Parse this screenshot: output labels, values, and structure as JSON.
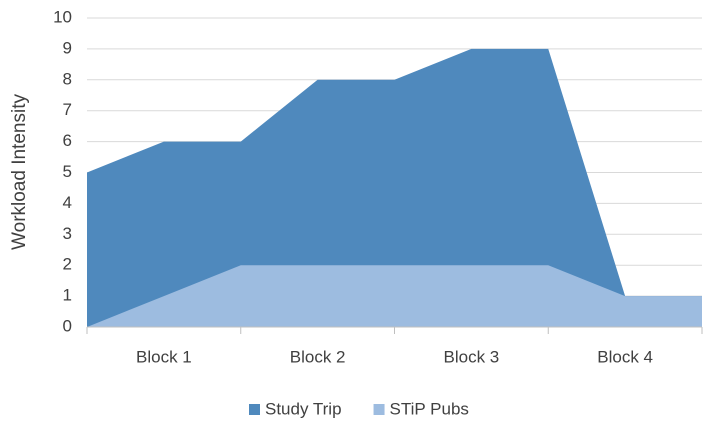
{
  "chart_data": {
    "type": "area",
    "y_label": "Workload Intensity",
    "categories": [
      null,
      "Block 1",
      null,
      "Block 2",
      null,
      "Block 3",
      null,
      "Block 4",
      null
    ],
    "series": [
      {
        "name": "Study Trip",
        "color": "#4f89bd",
        "values": [
          5,
          6,
          6,
          8,
          8,
          9,
          9,
          1,
          1
        ]
      },
      {
        "name": "STiP Pubs",
        "color": "#9dbce0",
        "values": [
          0,
          1,
          2,
          2,
          2,
          2,
          2,
          1,
          1
        ]
      }
    ],
    "ylim": [
      0,
      10
    ],
    "yticks": [
      0,
      1,
      2,
      3,
      4,
      5,
      6,
      7,
      8,
      9,
      10
    ],
    "grid": true,
    "legend": "bottom"
  }
}
